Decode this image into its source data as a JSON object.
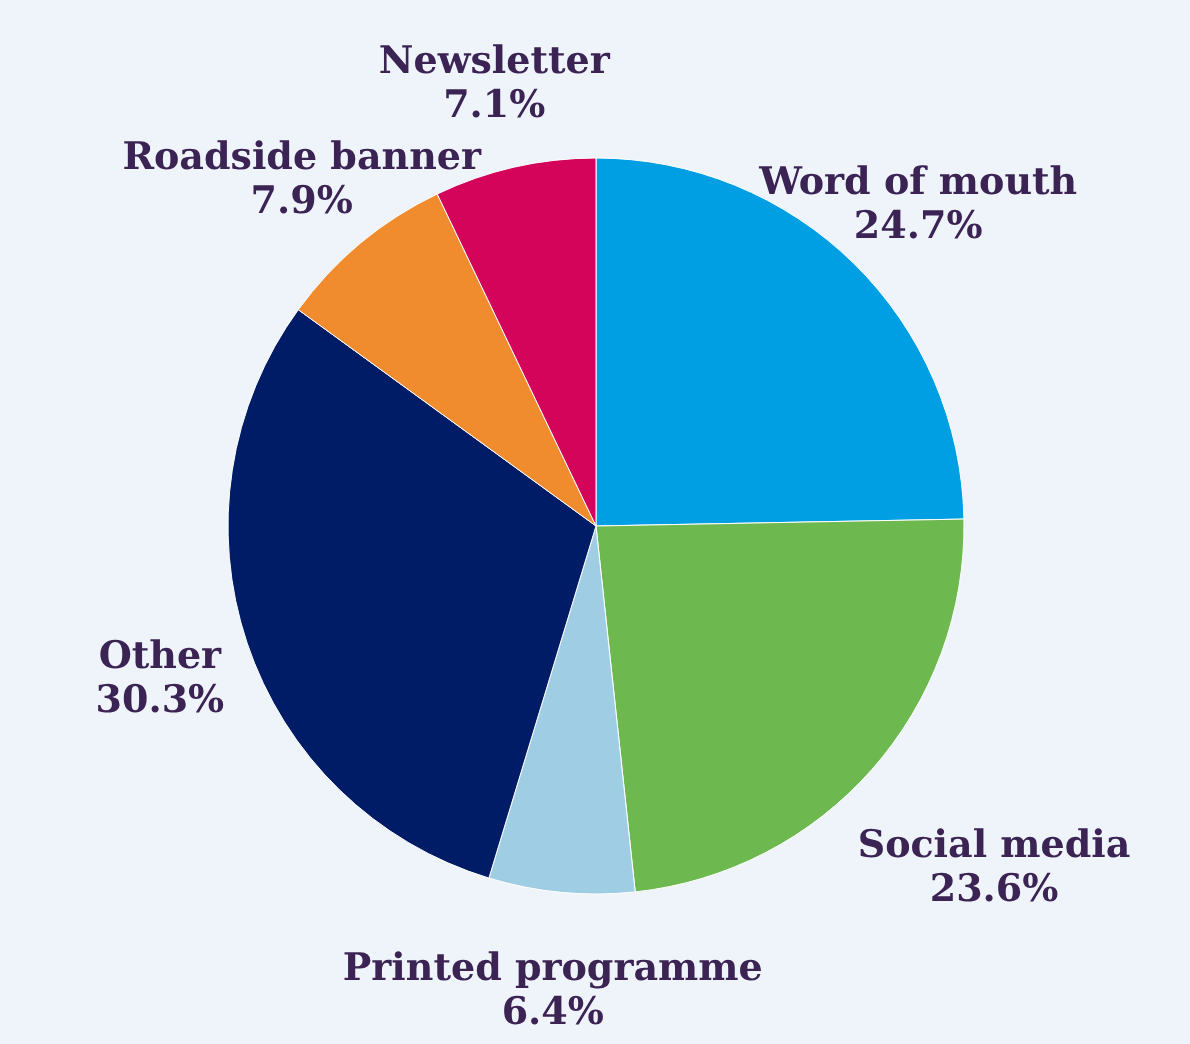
{
  "chart_data": {
    "type": "pie",
    "categories": [
      "Word of mouth",
      "Social media",
      "Printed programme",
      "Other",
      "Roadside banner",
      "Newsletter"
    ],
    "values": [
      24.7,
      23.6,
      6.4,
      30.3,
      7.9,
      7.1
    ],
    "value_labels": [
      "24.7%",
      "23.6%",
      "6.4%",
      "30.3%",
      "7.9%",
      "7.1%"
    ],
    "colors": [
      "#009fe3",
      "#6db84f",
      "#9fcde3",
      "#001c66",
      "#f08c2e",
      "#d4045b"
    ]
  }
}
